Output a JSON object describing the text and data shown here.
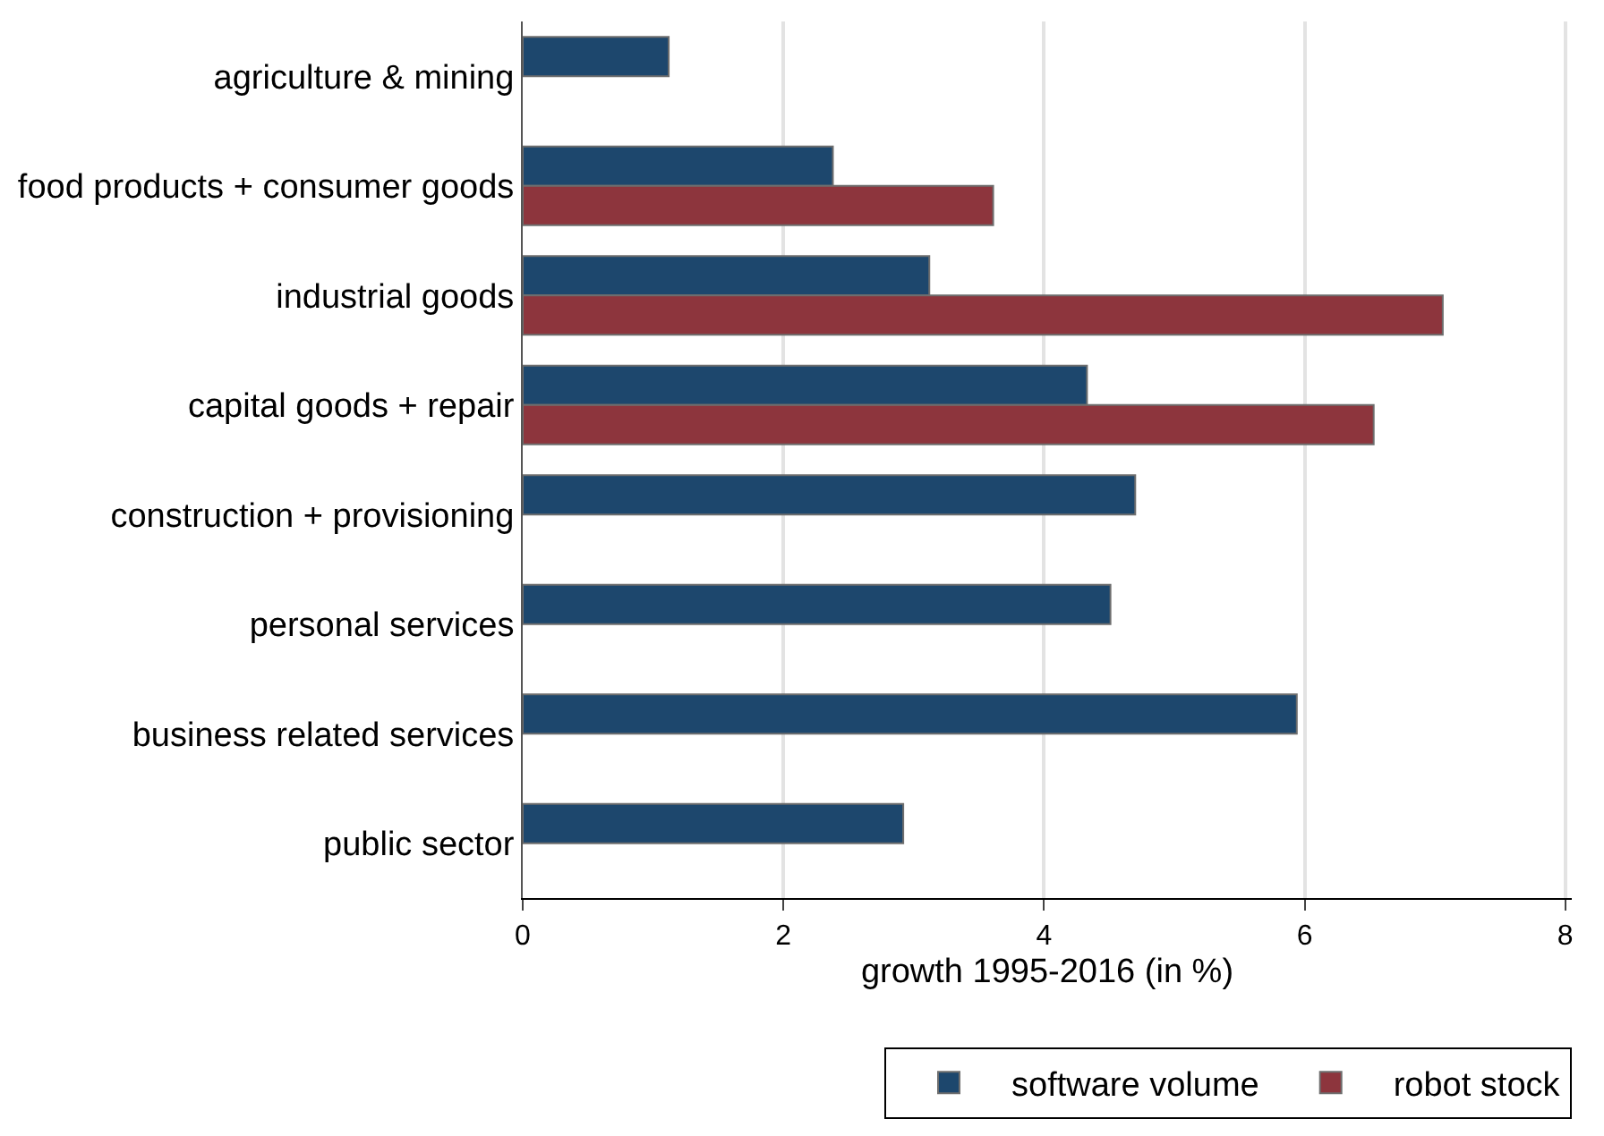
{
  "chart_data": {
    "type": "bar",
    "orientation": "horizontal",
    "xlabel": "growth 1995-2016 (in %)",
    "categories": [
      "agriculture & mining",
      "food products + consumer goods",
      "industrial goods",
      "capital goods + repair",
      "construction + provisioning",
      "personal services",
      "business related services",
      "public sector"
    ],
    "series": [
      {
        "name": "software volume",
        "color": "#1d476d",
        "values": [
          1.12,
          2.38,
          3.12,
          4.33,
          4.7,
          4.51,
          5.94,
          2.92
        ]
      },
      {
        "name": "robot stock",
        "color": "#8d353d",
        "values": [
          null,
          3.61,
          7.06,
          6.53,
          null,
          null,
          null,
          null
        ]
      }
    ],
    "xlim": [
      0,
      8.05
    ],
    "xticks": [
      0,
      2,
      4,
      6,
      8
    ],
    "grid": "x",
    "legend": "bottom"
  }
}
